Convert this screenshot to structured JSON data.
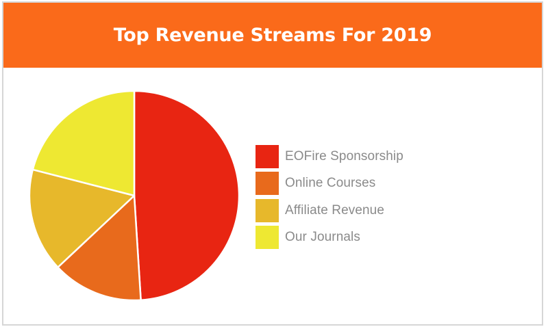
{
  "chart_data": {
    "type": "pie",
    "title": "Top Revenue Streams For 2019",
    "categories": [
      "EOFire Sponsorship",
      "Online Courses",
      "Affiliate Revenue",
      "Our Journals"
    ],
    "values": [
      49,
      14,
      16,
      21
    ],
    "colors": [
      "#e82512",
      "#e86a1c",
      "#e7b82b",
      "#eee832"
    ],
    "legend_position": "right",
    "start_angle_deg": 0,
    "direction": "clockwise"
  },
  "colors": {
    "header": "#fa6a1a",
    "border": "#d6d6d6",
    "legend_text": "#8a8a8a",
    "slice_stroke": "#ffffff"
  }
}
